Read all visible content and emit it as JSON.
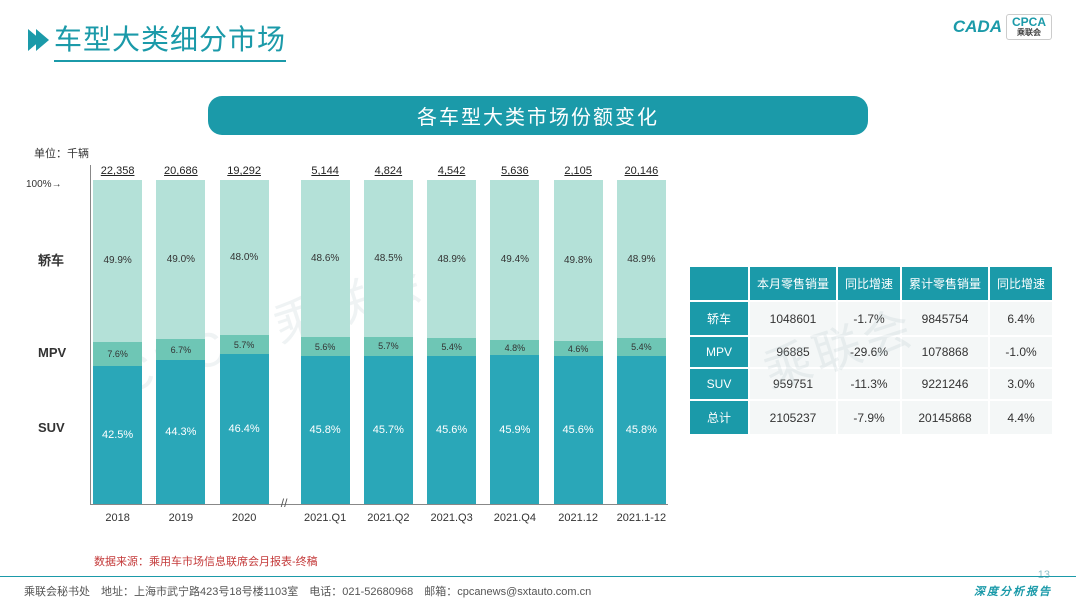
{
  "header": {
    "title": "车型大类细分市场",
    "logo_main": "CPCA",
    "logo_sub": "乘联会",
    "logo_icon": "CADA"
  },
  "subtitle": "各车型大类市场份额变化",
  "unit_label": "单位：千辆",
  "y_axis_100": "100%",
  "left_categories": [
    {
      "label": "轿车",
      "top_pct": 25
    },
    {
      "label": "MPV",
      "top_pct": 53
    },
    {
      "label": "SUV",
      "top_pct": 75
    }
  ],
  "chart": {
    "type": "stacked-bar-100pct",
    "colors": {
      "jiaoche": "#b4e1d8",
      "mpv": "#6ec6b5",
      "suv": "#2aa7b8",
      "bar_label_dark": "#333333",
      "bar_label_light": "#ffffff"
    },
    "bars": [
      {
        "x": "2018",
        "total": "22,358",
        "jiaoche": 49.9,
        "mpv": 7.6,
        "suv": 42.5
      },
      {
        "x": "2019",
        "total": "20,686",
        "jiaoche": 49.0,
        "mpv": 6.7,
        "suv": 44.3
      },
      {
        "x": "2020",
        "total": "19,292",
        "jiaoche": 48.0,
        "mpv": 5.7,
        "suv": 46.4,
        "break_after": true
      },
      {
        "x": "2021.Q1",
        "total": "5,144",
        "jiaoche": 48.6,
        "mpv": 5.6,
        "suv": 45.8
      },
      {
        "x": "2021.Q2",
        "total": "4,824",
        "jiaoche": 48.5,
        "mpv": 5.7,
        "suv": 45.7
      },
      {
        "x": "2021.Q3",
        "total": "4,542",
        "jiaoche": 48.9,
        "mpv": 5.4,
        "suv": 45.6
      },
      {
        "x": "2021.Q4",
        "total": "5,636",
        "jiaoche": 49.4,
        "mpv": 4.8,
        "suv": 45.9
      },
      {
        "x": "2021.12",
        "total": "2,105",
        "jiaoche": 49.8,
        "mpv": 4.6,
        "suv": 45.6
      },
      {
        "x": "2021.1-12",
        "total": "20,146",
        "jiaoche": 48.9,
        "mpv": 5.4,
        "suv": 45.8
      }
    ]
  },
  "table": {
    "headers": [
      "",
      "本月零售销量",
      "同比增速",
      "累计零售销量",
      "同比增速"
    ],
    "rows": [
      [
        "轿车",
        "1048601",
        "-1.7%",
        "9845754",
        "6.4%"
      ],
      [
        "MPV",
        "96885",
        "-29.6%",
        "1078868",
        "-1.0%"
      ],
      [
        "SUV",
        "959751",
        "-11.3%",
        "9221246",
        "3.0%"
      ],
      [
        "总计",
        "2105237",
        "-7.9%",
        "20145868",
        "4.4%"
      ]
    ]
  },
  "source": "数据来源：乘用车市场信息联席会月报表-终稿",
  "footer": {
    "left": "乘联会秘书处　地址：上海市武宁路423号18号楼1103室　电话：021-52680968　邮箱：cpcanews@sxtauto.com.cn",
    "right": "深度分析报告"
  },
  "page_number": "13",
  "watermarks": [
    "CPCA 乘联会",
    "乘联会"
  ]
}
